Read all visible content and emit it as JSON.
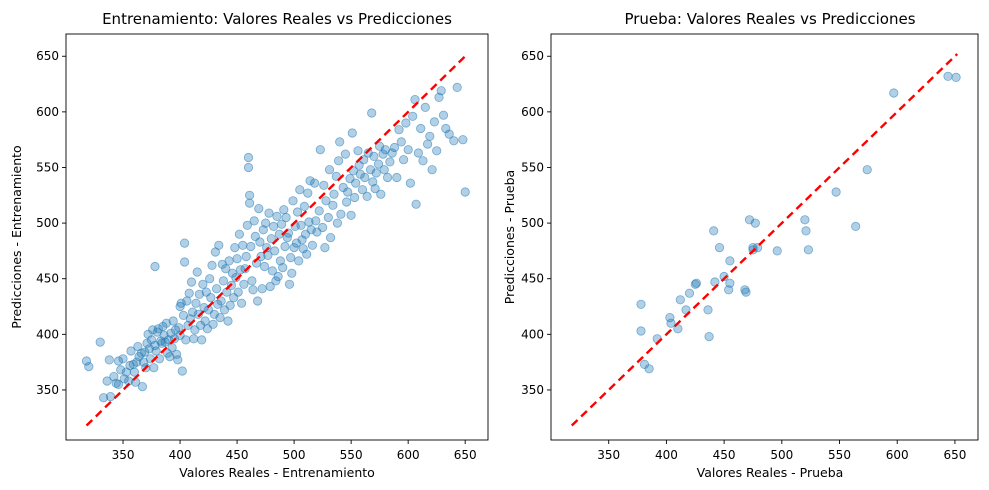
{
  "chart_data": [
    {
      "type": "scatter",
      "title": "Entrenamiento: Valores Reales vs Predicciones",
      "xlabel": "Valores Reales - Entrenamiento",
      "ylabel": "Predicciones - Entrenamiento",
      "xlim": [
        300,
        670
      ],
      "ylim": [
        305,
        670
      ],
      "xticks": [
        350,
        400,
        450,
        500,
        550,
        600,
        650
      ],
      "yticks": [
        350,
        400,
        450,
        500,
        550,
        600,
        650
      ],
      "grid": false,
      "point_color": "#1f77b4",
      "reference_line": {
        "from": [
          318,
          318
        ],
        "to": [
          652,
          652
        ],
        "color": "#ff0000",
        "style": "dashed"
      },
      "points": [
        [
          318,
          376
        ],
        [
          320,
          371
        ],
        [
          330,
          393
        ],
        [
          333,
          343
        ],
        [
          336,
          358
        ],
        [
          338,
          377
        ],
        [
          339,
          344
        ],
        [
          342,
          362
        ],
        [
          344,
          356
        ],
        [
          346,
          376
        ],
        [
          346,
          355
        ],
        [
          348,
          368
        ],
        [
          350,
          378
        ],
        [
          351,
          360
        ],
        [
          353,
          366
        ],
        [
          355,
          358
        ],
        [
          356,
          372
        ],
        [
          357,
          385
        ],
        [
          359,
          373
        ],
        [
          360,
          366
        ],
        [
          361,
          357
        ],
        [
          362,
          375
        ],
        [
          363,
          389
        ],
        [
          364,
          380
        ],
        [
          366,
          383
        ],
        [
          367,
          353
        ],
        [
          368,
          375
        ],
        [
          369,
          384
        ],
        [
          370,
          370
        ],
        [
          371,
          392
        ],
        [
          372,
          400
        ],
        [
          373,
          387
        ],
        [
          374,
          378
        ],
        [
          375,
          395
        ],
        [
          376,
          404
        ],
        [
          377,
          370
        ],
        [
          378,
          461
        ],
        [
          378,
          390
        ],
        [
          379,
          385
        ],
        [
          380,
          402
        ],
        [
          381,
          405
        ],
        [
          382,
          378
        ],
        [
          383,
          394
        ],
        [
          384,
          392
        ],
        [
          385,
          407
        ],
        [
          386,
          399
        ],
        [
          387,
          393
        ],
        [
          388,
          410
        ],
        [
          389,
          383
        ],
        [
          390,
          395
        ],
        [
          391,
          380
        ],
        [
          392,
          401
        ],
        [
          393,
          388
        ],
        [
          394,
          412
        ],
        [
          395,
          396
        ],
        [
          396,
          404
        ],
        [
          397,
          382
        ],
        [
          398,
          377
        ],
        [
          399,
          406
        ],
        [
          400,
          425
        ],
        [
          400,
          399
        ],
        [
          401,
          428
        ],
        [
          402,
          367
        ],
        [
          403,
          417
        ],
        [
          404,
          465
        ],
        [
          404,
          482
        ],
        [
          405,
          395
        ],
        [
          406,
          430
        ],
        [
          407,
          408
        ],
        [
          408,
          437
        ],
        [
          409,
          414
        ],
        [
          410,
          447
        ],
        [
          411,
          420
        ],
        [
          412,
          396
        ],
        [
          413,
          404
        ],
        [
          414,
          428
        ],
        [
          415,
          456
        ],
        [
          416,
          418
        ],
        [
          417,
          436
        ],
        [
          418,
          408
        ],
        [
          419,
          395
        ],
        [
          420,
          445
        ],
        [
          421,
          424
        ],
        [
          422,
          412
        ],
        [
          423,
          438
        ],
        [
          424,
          405
        ],
        [
          425,
          422
        ],
        [
          426,
          450
        ],
        [
          427,
          433
        ],
        [
          428,
          462
        ],
        [
          429,
          409
        ],
        [
          430,
          418
        ],
        [
          431,
          474
        ],
        [
          432,
          441
        ],
        [
          433,
          427
        ],
        [
          434,
          480
        ],
        [
          435,
          415
        ],
        [
          436,
          430
        ],
        [
          437,
          463
        ],
        [
          438,
          448
        ],
        [
          439,
          422
        ],
        [
          440,
          459
        ],
        [
          441,
          438
        ],
        [
          442,
          412
        ],
        [
          443,
          466
        ],
        [
          444,
          426
        ],
        [
          445,
          444
        ],
        [
          446,
          455
        ],
        [
          447,
          433
        ],
        [
          448,
          478
        ],
        [
          449,
          451
        ],
        [
          450,
          468
        ],
        [
          451,
          438
        ],
        [
          452,
          490
        ],
        [
          453,
          458
        ],
        [
          454,
          428
        ],
        [
          455,
          480
        ],
        [
          456,
          445
        ],
        [
          457,
          459
        ],
        [
          458,
          470
        ],
        [
          459,
          498
        ],
        [
          460,
          550
        ],
        [
          460,
          559
        ],
        [
          461,
          525
        ],
        [
          461,
          518
        ],
        [
          462,
          479
        ],
        [
          463,
          448
        ],
        [
          464,
          440
        ],
        [
          465,
          502
        ],
        [
          466,
          488
        ],
        [
          467,
          464
        ],
        [
          468,
          430
        ],
        [
          469,
          513
        ],
        [
          470,
          483
        ],
        [
          471,
          470
        ],
        [
          472,
          441
        ],
        [
          473,
          494
        ],
        [
          474,
          461
        ],
        [
          475,
          500
        ],
        [
          476,
          478
        ],
        [
          477,
          471
        ],
        [
          478,
          509
        ],
        [
          479,
          443
        ],
        [
          480,
          486
        ],
        [
          481,
          457
        ],
        [
          482,
          497
        ],
        [
          483,
          475
        ],
        [
          484,
          448
        ],
        [
          485,
          506
        ],
        [
          486,
          452
        ],
        [
          487,
          490
        ],
        [
          488,
          466
        ],
        [
          489,
          499
        ],
        [
          490,
          460
        ],
        [
          491,
          512
        ],
        [
          492,
          479
        ],
        [
          493,
          505
        ],
        [
          494,
          487
        ],
        [
          495,
          491
        ],
        [
          496,
          445
        ],
        [
          497,
          469
        ],
        [
          498,
          455
        ],
        [
          499,
          520
        ],
        [
          500,
          478
        ],
        [
          501,
          497
        ],
        [
          502,
          482
        ],
        [
          503,
          510
        ],
        [
          504,
          466
        ],
        [
          505,
          530
        ],
        [
          506,
          498
        ],
        [
          507,
          485
        ],
        [
          508,
          477
        ],
        [
          509,
          515
        ],
        [
          510,
          490
        ],
        [
          511,
          472
        ],
        [
          512,
          527
        ],
        [
          513,
          501
        ],
        [
          514,
          538
        ],
        [
          515,
          494
        ],
        [
          516,
          480
        ],
        [
          518,
          536
        ],
        [
          519,
          502
        ],
        [
          520,
          492
        ],
        [
          522,
          511
        ],
        [
          523,
          566
        ],
        [
          525,
          496
        ],
        [
          526,
          534
        ],
        [
          527,
          478
        ],
        [
          528,
          520
        ],
        [
          530,
          505
        ],
        [
          531,
          548
        ],
        [
          532,
          487
        ],
        [
          534,
          516
        ],
        [
          535,
          526
        ],
        [
          537,
          542
        ],
        [
          538,
          500
        ],
        [
          539,
          556
        ],
        [
          540,
          573
        ],
        [
          541,
          508
        ],
        [
          543,
          532
        ],
        [
          545,
          562
        ],
        [
          546,
          519
        ],
        [
          547,
          528
        ],
        [
          549,
          540
        ],
        [
          550,
          507
        ],
        [
          551,
          581
        ],
        [
          552,
          547
        ],
        [
          553,
          523
        ],
        [
          554,
          536
        ],
        [
          556,
          565
        ],
        [
          557,
          552
        ],
        [
          558,
          544
        ],
        [
          560,
          530
        ],
        [
          561,
          557
        ],
        [
          562,
          541
        ],
        [
          564,
          524
        ],
        [
          565,
          563
        ],
        [
          567,
          548
        ],
        [
          568,
          599
        ],
        [
          569,
          537
        ],
        [
          570,
          560
        ],
        [
          571,
          531
        ],
        [
          572,
          545
        ],
        [
          574,
          553
        ],
        [
          575,
          569
        ],
        [
          576,
          526
        ],
        [
          578,
          562
        ],
        [
          579,
          548
        ],
        [
          580,
          566
        ],
        [
          582,
          541
        ],
        [
          584,
          555
        ],
        [
          586,
          563
        ],
        [
          588,
          568
        ],
        [
          590,
          541
        ],
        [
          592,
          584
        ],
        [
          594,
          573
        ],
        [
          596,
          557
        ],
        [
          598,
          590
        ],
        [
          600,
          566
        ],
        [
          602,
          536
        ],
        [
          604,
          596
        ],
        [
          606,
          611
        ],
        [
          607,
          517
        ],
        [
          609,
          563
        ],
        [
          611,
          585
        ],
        [
          613,
          556
        ],
        [
          615,
          604
        ],
        [
          617,
          571
        ],
        [
          619,
          578
        ],
        [
          621,
          548
        ],
        [
          623,
          591
        ],
        [
          625,
          565
        ],
        [
          627,
          613
        ],
        [
          629,
          619
        ],
        [
          631,
          597
        ],
        [
          633,
          585
        ],
        [
          636,
          580
        ],
        [
          640,
          574
        ],
        [
          643,
          622
        ],
        [
          648,
          575
        ],
        [
          650,
          528
        ]
      ]
    },
    {
      "type": "scatter",
      "title": "Prueba: Valores Reales vs Predicciones",
      "xlabel": "Valores Reales - Prueba",
      "ylabel": "Predicciones - Prueba",
      "xlim": [
        300,
        670
      ],
      "ylim": [
        305,
        670
      ],
      "xticks": [
        350,
        400,
        450,
        500,
        550,
        600,
        650
      ],
      "yticks": [
        350,
        400,
        450,
        500,
        550,
        600,
        650
      ],
      "grid": false,
      "point_color": "#1f77b4",
      "reference_line": {
        "from": [
          318,
          318
        ],
        "to": [
          652,
          652
        ],
        "color": "#ff0000",
        "style": "dashed"
      },
      "points": [
        [
          378,
          427
        ],
        [
          378,
          403
        ],
        [
          381,
          373
        ],
        [
          385,
          369
        ],
        [
          392,
          396
        ],
        [
          403,
          415
        ],
        [
          404,
          410
        ],
        [
          410,
          405
        ],
        [
          412,
          431
        ],
        [
          417,
          422
        ],
        [
          420,
          437
        ],
        [
          425,
          445
        ],
        [
          426,
          446
        ],
        [
          436,
          422
        ],
        [
          437,
          398
        ],
        [
          441,
          493
        ],
        [
          442,
          447
        ],
        [
          446,
          478
        ],
        [
          450,
          452
        ],
        [
          455,
          466
        ],
        [
          454,
          440
        ],
        [
          455,
          446
        ],
        [
          468,
          440
        ],
        [
          469,
          438
        ],
        [
          472,
          503
        ],
        [
          475,
          478
        ],
        [
          475,
          476
        ],
        [
          477,
          500
        ],
        [
          479,
          478
        ],
        [
          496,
          475
        ],
        [
          520,
          503
        ],
        [
          521,
          493
        ],
        [
          523,
          476
        ],
        [
          547,
          528
        ],
        [
          564,
          497
        ],
        [
          574,
          548
        ],
        [
          597,
          617
        ],
        [
          644,
          632
        ],
        [
          651,
          631
        ]
      ]
    }
  ]
}
